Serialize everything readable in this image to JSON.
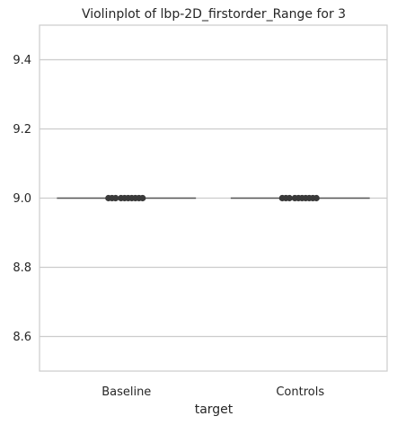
{
  "chart_data": {
    "type": "violin",
    "title": "Violinplot of lbp-2D_firstorder_Range for 3",
    "xlabel": "target",
    "ylabel": "",
    "categories": [
      "Baseline",
      "Controls"
    ],
    "ylim": [
      8.5,
      9.5
    ],
    "yticks": [
      8.6,
      8.8,
      9.0,
      9.2,
      9.4
    ],
    "ytick_labels": [
      "8.6",
      "8.8",
      "9.0",
      "9.2",
      "9.4"
    ],
    "series": [
      {
        "category": "Baseline",
        "value": 9.0
      },
      {
        "category": "Controls",
        "value": 9.0
      }
    ],
    "grid": true,
    "colors": {
      "line": "#555555",
      "points": "#3a3a3a",
      "grid": "#cccccc",
      "frame": "#cccccc"
    }
  }
}
